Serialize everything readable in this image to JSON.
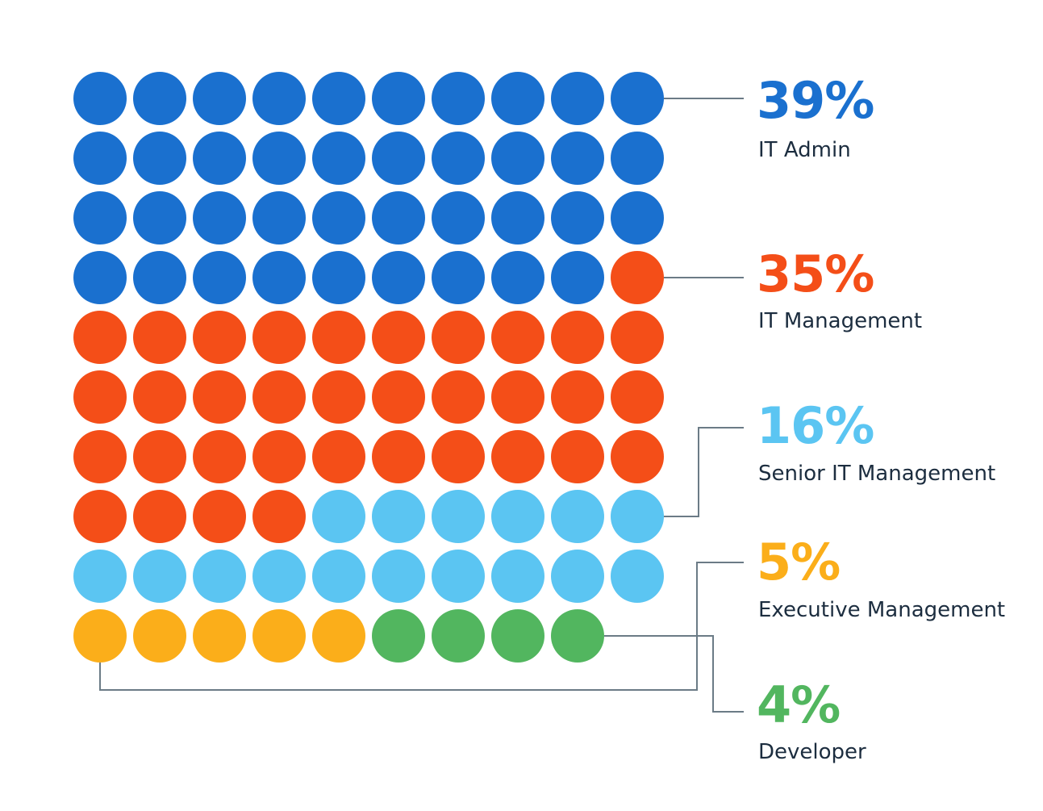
{
  "chart_data": {
    "type": "waffle",
    "total_units": 100,
    "categories": [
      {
        "name": "IT Admin",
        "percent": 39,
        "value_label": "39%",
        "color": "#1a70cf"
      },
      {
        "name": "IT Management",
        "percent": 35,
        "value_label": "35%",
        "color": "#f44e18"
      },
      {
        "name": "Senior IT Management",
        "percent": 16,
        "value_label": "16%",
        "color": "#5bc5f2"
      },
      {
        "name": "Executive Management",
        "percent": 5,
        "value_label": "5%",
        "color": "#fbae1a"
      },
      {
        "name": "Developer",
        "percent": 4,
        "value_label": "4%",
        "color": "#52b65f"
      }
    ],
    "legend_placement": "right",
    "connector_color": "#6b7b86"
  }
}
